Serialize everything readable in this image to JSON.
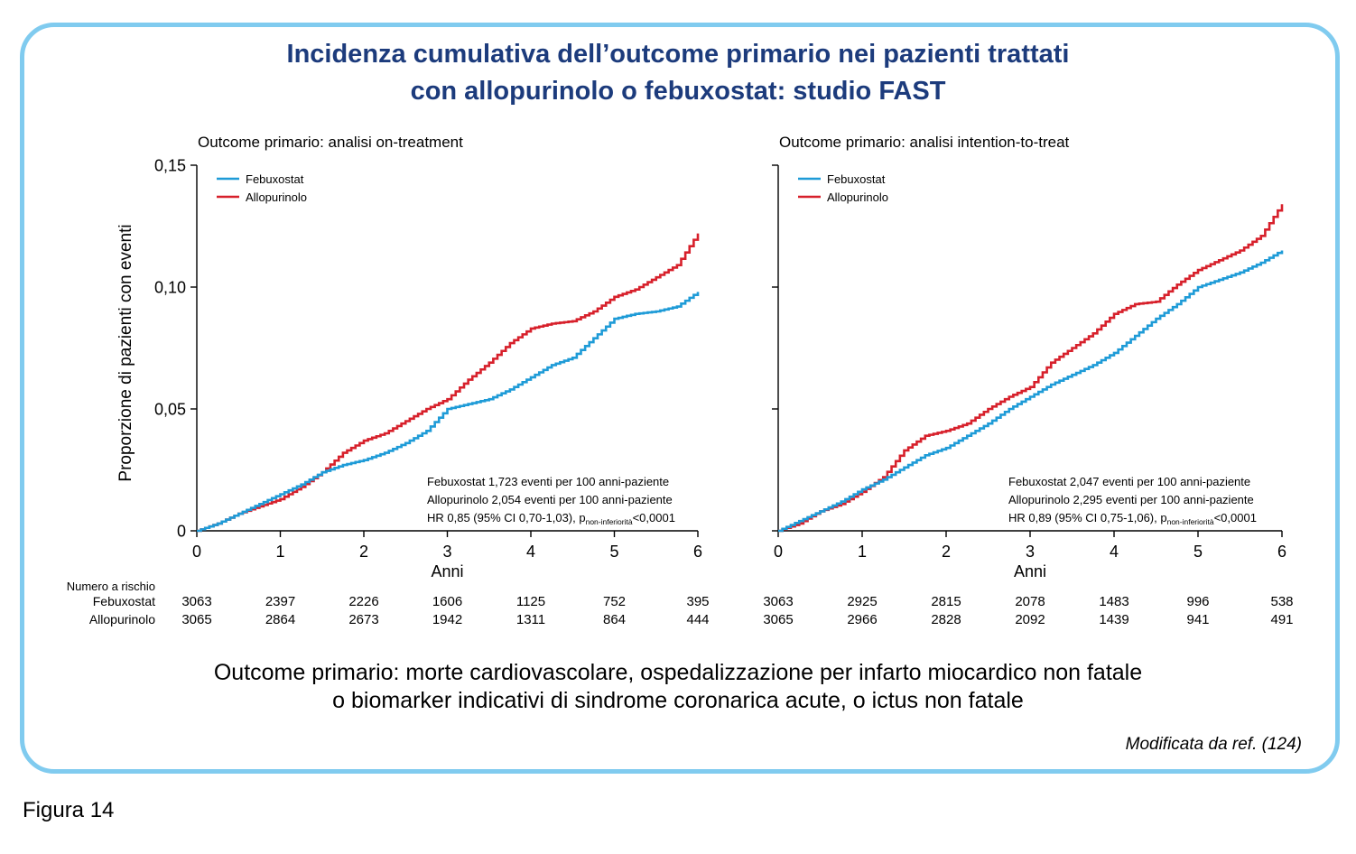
{
  "figure": {
    "title_lines": [
      "Incidenza cumulativa dell’outcome primario nei pazienti trattati",
      "con allopurinolo o febuxostat: studio FAST"
    ],
    "caption_lines": [
      "Outcome primario: morte cardiovascolare, ospedalizzazione per infarto miocardico non fatale",
      "o biomarker indicativi di sindrome coronarica acute, o ictus non fatale"
    ],
    "source": "Modificata da ref. (124)",
    "label": "Figura 14"
  },
  "colors": {
    "frame_border": "#80cbef",
    "title": "#1c3b7c"
  },
  "at_risk_table": {
    "header": "Numero a rischio",
    "row_labels": [
      "Febuxostat",
      "Allopurinolo"
    ]
  },
  "chart_data": [
    {
      "type": "line",
      "step": true,
      "title": "Outcome primario: analisi on-treatment",
      "xlabel": "Anni",
      "ylabel": "Proporzione di pazienti con eventi",
      "xlim": [
        0,
        6
      ],
      "ylim": [
        0,
        0.15
      ],
      "xticks": [
        0,
        1,
        2,
        3,
        4,
        5,
        6
      ],
      "xtick_labels": [
        "0",
        "1",
        "2",
        "3",
        "4",
        "5",
        "6"
      ],
      "yticks": [
        0,
        0.05,
        0.1,
        0.15
      ],
      "ytick_labels": [
        "0",
        "0,05",
        "0,10",
        "0,15"
      ],
      "grid": false,
      "legend": "top-left",
      "x": [
        0,
        0.25,
        0.5,
        0.75,
        1,
        1.25,
        1.5,
        1.75,
        2,
        2.25,
        2.5,
        2.75,
        3,
        3.25,
        3.5,
        3.75,
        4,
        4.25,
        4.5,
        4.75,
        5,
        5.25,
        5.5,
        5.75,
        6
      ],
      "series": [
        {
          "name": "Febuxostat",
          "color": "#1e9bd7",
          "values": [
            0,
            0.003,
            0.007,
            0.011,
            0.015,
            0.019,
            0.024,
            0.027,
            0.029,
            0.032,
            0.036,
            0.041,
            0.05,
            0.052,
            0.054,
            0.058,
            0.063,
            0.068,
            0.071,
            0.079,
            0.087,
            0.089,
            0.09,
            0.092,
            0.098
          ]
        },
        {
          "name": "Allopurinolo",
          "color": "#d7202b",
          "values": [
            0,
            0.003,
            0.007,
            0.01,
            0.013,
            0.018,
            0.024,
            0.032,
            0.037,
            0.04,
            0.045,
            0.05,
            0.054,
            0.062,
            0.069,
            0.077,
            0.083,
            0.085,
            0.086,
            0.09,
            0.096,
            0.099,
            0.104,
            0.109,
            0.122
          ]
        }
      ],
      "annotation": {
        "lines": [
          "Febuxostat 1,723 eventi per 100 anni-paziente",
          "Allopurinolo 2,054 eventi per 100 anni-paziente"
        ],
        "hr_main": "HR 0,85 (95% CI 0,70-1,03), p",
        "hr_subscript": "non-inferiorità",
        "hr_tail": "<0,0001"
      },
      "at_risk": [
        [
          3063,
          2397,
          2226,
          1606,
          1125,
          752,
          395
        ],
        [
          3065,
          2864,
          2673,
          1942,
          1311,
          864,
          444
        ]
      ]
    },
    {
      "type": "line",
      "step": true,
      "title": "Outcome primario: analisi intention-to-treat",
      "xlabel": "Anni",
      "xlim": [
        0,
        6
      ],
      "ylim": [
        0,
        0.15
      ],
      "xticks": [
        0,
        1,
        2,
        3,
        4,
        5,
        6
      ],
      "xtick_labels": [
        "0",
        "1",
        "2",
        "3",
        "4",
        "5",
        "6"
      ],
      "yticks": [
        0,
        0.05,
        0.1,
        0.15
      ],
      "grid": false,
      "legend": "top-left",
      "x": [
        0,
        0.25,
        0.5,
        0.75,
        1,
        1.25,
        1.5,
        1.75,
        2,
        2.25,
        2.5,
        2.75,
        3,
        3.25,
        3.5,
        3.75,
        4,
        4.25,
        4.5,
        4.75,
        5,
        5.25,
        5.5,
        5.75,
        6
      ],
      "series": [
        {
          "name": "Febuxostat",
          "color": "#1e9bd7",
          "values": [
            0,
            0.004,
            0.008,
            0.012,
            0.017,
            0.021,
            0.026,
            0.031,
            0.034,
            0.039,
            0.044,
            0.05,
            0.055,
            0.06,
            0.064,
            0.068,
            0.073,
            0.08,
            0.087,
            0.093,
            0.1,
            0.103,
            0.106,
            0.11,
            0.115
          ]
        },
        {
          "name": "Allopurinolo",
          "color": "#d7202b",
          "values": [
            0,
            0.003,
            0.008,
            0.011,
            0.016,
            0.022,
            0.033,
            0.039,
            0.041,
            0.044,
            0.05,
            0.055,
            0.059,
            0.069,
            0.075,
            0.081,
            0.089,
            0.093,
            0.094,
            0.101,
            0.107,
            0.111,
            0.115,
            0.121,
            0.134
          ]
        }
      ],
      "annotation": {
        "lines": [
          "Febuxostat 2,047 eventi per 100 anni-paziente",
          "Allopurinolo 2,295 eventi per 100 anni-paziente"
        ],
        "hr_main": "HR 0,89 (95% CI 0,75-1,06), p",
        "hr_subscript": "non-inferiorità",
        "hr_tail": "<0,0001"
      },
      "at_risk": [
        [
          3063,
          2925,
          2815,
          2078,
          1483,
          996,
          538
        ],
        [
          3065,
          2966,
          2828,
          2092,
          1439,
          941,
          491
        ]
      ]
    }
  ]
}
